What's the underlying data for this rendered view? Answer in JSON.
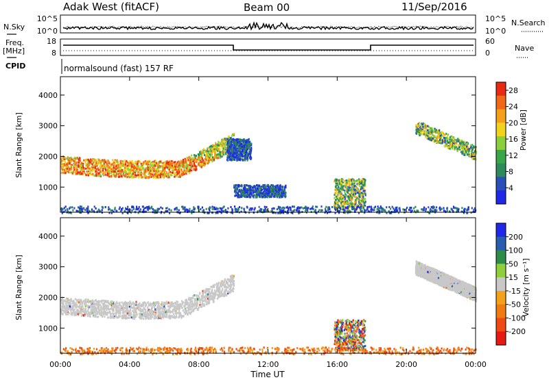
{
  "header": {
    "station": "Adak West (fitACF)",
    "beam": "Beam 00",
    "date": "11/Sep/2016"
  },
  "top_panel": {
    "left_label": "N.Sky",
    "right_label": "N.Search",
    "y_ticks_left": [
      "10^5",
      "10^0"
    ],
    "y_ticks_right": [
      "10^5",
      "10^0"
    ]
  },
  "freq_panel": {
    "left_label_line1": "Freq.",
    "left_label_line2": "[MHz]",
    "right_label": "Nave",
    "y_ticks_left": [
      "18",
      "8"
    ],
    "y_ticks_right": [
      "60",
      "0"
    ]
  },
  "cpid": {
    "label": "CPID",
    "value": "normalsound (fast) 157 RF"
  },
  "x_axis": {
    "ticks": [
      "00:00",
      "04:00",
      "08:00",
      "12:00",
      "16:00",
      "20:00",
      "00:00"
    ],
    "label": "Time UT"
  },
  "colors": {
    "power_scale": [
      "#1f28e6",
      "#2a4fb8",
      "#2d8a5a",
      "#3aa64a",
      "#8ccf3c",
      "#f2d21c",
      "#f5a01a",
      "#f06818",
      "#e82a12"
    ],
    "velocity_scale": [
      "#1f28e6",
      "#2a5cb0",
      "#2e8c4a",
      "#8fd03a",
      "#c8c8c8",
      "#f5a01a",
      "#f07a14",
      "#ef4a12",
      "#e61a12"
    ],
    "ground_scatter": "#c8c8c8"
  },
  "chart_data": [
    {
      "type": "heatmap",
      "title": "",
      "xlabel": "",
      "ylabel": "Slant Range [km]",
      "x_range_hours": [
        0,
        24
      ],
      "ylim": [
        180,
        4600
      ],
      "y_ticks": [
        "1000",
        "2000",
        "3000",
        "4000"
      ],
      "colorbar": {
        "label": "Power [dB]",
        "ticks": [
          "4",
          "8",
          "12",
          "16",
          "20",
          "24",
          "28"
        ],
        "range": [
          0,
          30
        ]
      },
      "echo_regions": [
        {
          "t_start": 0.0,
          "t_end": 10.0,
          "range_start": 1400,
          "range_end": 2800,
          "strength": "strong"
        },
        {
          "t_start": 9.6,
          "t_end": 11.0,
          "range_start": 1900,
          "range_end": 2600,
          "strength": "weak"
        },
        {
          "t_start": 10.0,
          "t_end": 13.0,
          "range_start": 700,
          "range_end": 1100,
          "strength": "weak"
        },
        {
          "t_start": 15.8,
          "t_end": 17.6,
          "range_start": 300,
          "range_end": 1300,
          "strength": "medium"
        },
        {
          "t_start": 20.5,
          "t_end": 24.0,
          "range_start": 1900,
          "range_end": 3300,
          "strength": "medium"
        },
        {
          "t_start": 0.0,
          "t_end": 24.0,
          "range_start": 180,
          "range_end": 400,
          "strength": "scattered"
        }
      ]
    },
    {
      "type": "heatmap",
      "title": "",
      "xlabel": "Time UT",
      "ylabel": "Slant Range [km]",
      "x_range_hours": [
        0,
        24
      ],
      "ylim": [
        180,
        4600
      ],
      "y_ticks": [
        "1000",
        "2000",
        "3000",
        "4000"
      ],
      "colorbar": {
        "label": "Velocity [m s⁻¹]",
        "ticks": [
          "200",
          "100",
          "50",
          "15",
          "-15",
          "-50",
          "-100",
          "-200"
        ],
        "range": [
          -250,
          250
        ]
      },
      "echo_regions": [
        {
          "t_start": 0.0,
          "t_end": 10.0,
          "range_start": 1400,
          "range_end": 2800,
          "class": "ground_scatter"
        },
        {
          "t_start": 20.5,
          "t_end": 24.0,
          "range_start": 1900,
          "range_end": 3300,
          "class": "ground_scatter"
        },
        {
          "t_start": 15.8,
          "t_end": 17.6,
          "range_start": 300,
          "range_end": 1300,
          "class": "mixed"
        },
        {
          "t_start": 0.0,
          "t_end": 24.0,
          "range_start": 180,
          "range_end": 400,
          "class": "negative_velocity"
        }
      ]
    }
  ]
}
